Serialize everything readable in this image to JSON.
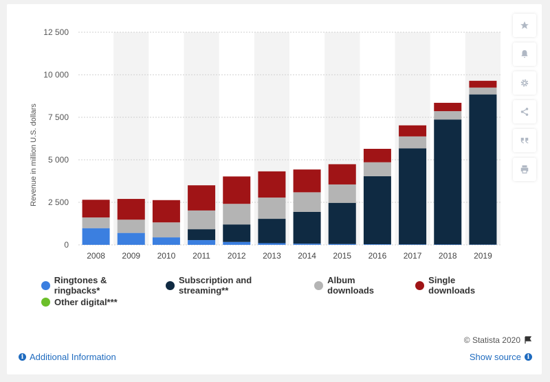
{
  "chart_data": {
    "type": "bar",
    "stacked": true,
    "categories": [
      "2008",
      "2009",
      "2010",
      "2011",
      "2012",
      "2013",
      "2014",
      "2015",
      "2016",
      "2017",
      "2018",
      "2019"
    ],
    "series": [
      {
        "name": "Ringtones & ringbacks*",
        "color": "#3b7fe0",
        "values": [
          980,
          700,
          440,
          280,
          170,
          100,
          70,
          50,
          35,
          25,
          20,
          15
        ]
      },
      {
        "name": "Subscription and streaming**",
        "color": "#0f2a42",
        "values": [
          0,
          0,
          0,
          640,
          1030,
          1430,
          1870,
          2420,
          4000,
          5650,
          7350,
          8830
        ]
      },
      {
        "name": "Album downloads",
        "color": "#b4b4b4",
        "values": [
          630,
          780,
          880,
          1100,
          1210,
          1250,
          1150,
          1080,
          820,
          700,
          490,
          400
        ]
      },
      {
        "name": "Single downloads",
        "color": "#a01416",
        "values": [
          1040,
          1220,
          1310,
          1480,
          1610,
          1540,
          1340,
          1190,
          790,
          650,
          490,
          400
        ]
      },
      {
        "name": "Other digital***",
        "color": "#6cbf2a",
        "values": [
          0,
          0,
          0,
          0,
          0,
          0,
          0,
          0,
          0,
          0,
          0,
          0
        ]
      }
    ],
    "ylabel": "Revenue in million U.S. dollars",
    "xlabel": "",
    "ylim": [
      0,
      12500
    ],
    "yticks": [
      0,
      2500,
      5000,
      7500,
      10000,
      12500
    ],
    "ytick_labels": [
      "0",
      "2 500",
      "5 000",
      "7 500",
      "10 000",
      "12 500"
    ],
    "grid": true,
    "legend_position": "bottom"
  },
  "legend": {
    "row1": [
      "Ringtones & ringbacks*",
      "Subscription and streaming**",
      "Album downloads",
      "Single downloads"
    ],
    "row2": [
      "Other digital***"
    ]
  },
  "footer": {
    "copyright": "© Statista 2020",
    "additional_info": "Additional Information",
    "show_source": "Show source",
    "info_glyph": "i"
  },
  "toolbar": {
    "icons": [
      "star-icon",
      "bell-icon",
      "gear-icon",
      "share-icon",
      "quote-icon",
      "print-icon"
    ]
  }
}
